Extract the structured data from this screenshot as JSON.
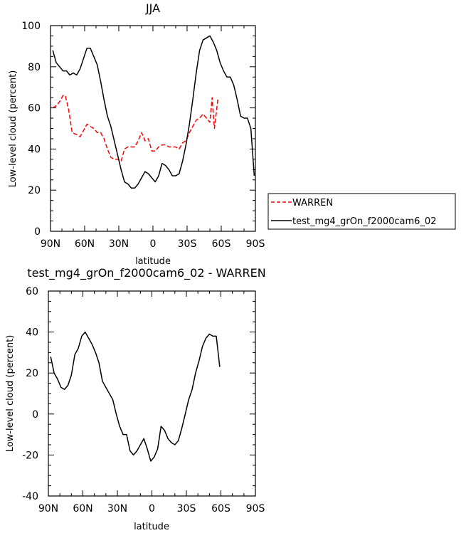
{
  "chart_data": [
    {
      "type": "line",
      "title": "JJA",
      "xlabel": "latitude",
      "ylabel": "Low-level cloud (percent)",
      "xlim": [
        -90,
        90
      ],
      "ylim": [
        0,
        100
      ],
      "x_ticks": [
        -90,
        -60,
        -30,
        0,
        30,
        60,
        90
      ],
      "x_tick_labels": [
        "90N",
        "60N",
        "30N",
        "0",
        "30S",
        "60S",
        "90S"
      ],
      "y_ticks": [
        0,
        20,
        40,
        60,
        80,
        100
      ],
      "y_tick_labels": [
        "0",
        "20",
        "40",
        "60",
        "80",
        "100"
      ],
      "legend": "outside-right",
      "series": [
        {
          "name": "WARREN",
          "color": "#ff0000",
          "dash": "dashed",
          "x": [
            -88,
            -85,
            -82,
            -79,
            -77,
            -74,
            -71,
            -67,
            -64,
            -61,
            -58,
            -55,
            -52,
            -49,
            -46,
            -43,
            -40,
            -37,
            -34,
            -31,
            -28,
            -25,
            -22,
            -19,
            -16,
            -13,
            -10,
            -7,
            -4,
            -1,
            2,
            5,
            8,
            11,
            14,
            17,
            20,
            23,
            26,
            29,
            32,
            35,
            38,
            41,
            44,
            47,
            50,
            52,
            54,
            57
          ],
          "values": [
            60,
            61,
            63,
            66,
            66,
            59,
            48,
            47,
            46,
            49,
            52,
            51,
            50,
            48,
            48,
            45,
            40,
            36,
            35,
            35,
            34,
            40,
            41,
            41,
            41,
            44,
            48,
            44,
            45,
            39,
            39,
            41,
            42,
            42,
            41,
            41,
            41,
            40,
            43,
            44,
            48,
            51,
            54,
            55,
            57,
            55,
            53,
            65,
            50,
            64
          ]
        },
        {
          "name": "test_mg4_grOn_f2000cam6_02",
          "color": "#000000",
          "dash": "solid",
          "x": [
            -88,
            -85,
            -82,
            -79,
            -76,
            -73,
            -70,
            -67,
            -64,
            -61,
            -58,
            -55,
            -52,
            -49,
            -46,
            -43,
            -40,
            -37,
            -34,
            -31,
            -28,
            -25,
            -22,
            -19,
            -16,
            -13,
            -10,
            -7,
            -4,
            -1,
            2,
            5,
            8,
            11,
            14,
            17,
            20,
            23,
            26,
            29,
            32,
            35,
            38,
            41,
            44,
            47,
            50,
            53,
            56,
            59,
            62,
            65,
            68,
            71,
            74,
            77,
            80,
            83,
            86,
            89
          ],
          "values": [
            88,
            82,
            80,
            78,
            78,
            76,
            77,
            76,
            79,
            84,
            89,
            89,
            85,
            81,
            73,
            64,
            56,
            51,
            44,
            37,
            30,
            24,
            23,
            21,
            21,
            23,
            26,
            29,
            28,
            26,
            24,
            27,
            33,
            32,
            30,
            27,
            27,
            28,
            34,
            42,
            52,
            64,
            77,
            88,
            93,
            94,
            95,
            92,
            88,
            82,
            78,
            75,
            75,
            71,
            64,
            56,
            55,
            55,
            50,
            27
          ]
        }
      ]
    },
    {
      "type": "line",
      "title": "test_mg4_grOn_f2000cam6_02 - WARREN",
      "xlabel": "latitude",
      "ylabel": "Low-level cloud (percent)",
      "xlim": [
        -90,
        90
      ],
      "ylim": [
        -40,
        60
      ],
      "x_ticks": [
        -90,
        -60,
        -30,
        0,
        30,
        60,
        90
      ],
      "x_tick_labels": [
        "90N",
        "60N",
        "30N",
        "0",
        "30S",
        "60S",
        "90S"
      ],
      "y_ticks": [
        -40,
        -20,
        0,
        20,
        40,
        60
      ],
      "y_tick_labels": [
        "-40",
        "-20",
        "0",
        "20",
        "40",
        "60"
      ],
      "series": [
        {
          "color": "#000000",
          "dash": "solid",
          "x": [
            -88,
            -85,
            -82,
            -79,
            -76,
            -73,
            -70,
            -67,
            -64,
            -61,
            -58,
            -55,
            -52,
            -49,
            -46,
            -43,
            -40,
            -37,
            -34,
            -31,
            -28,
            -25,
            -22,
            -19,
            -16,
            -13,
            -10,
            -7,
            -4,
            -1,
            2,
            5,
            8,
            11,
            14,
            17,
            20,
            23,
            26,
            29,
            32,
            35,
            38,
            41,
            44,
            47,
            50,
            53,
            56,
            59
          ],
          "values": [
            28,
            20,
            17,
            13,
            12,
            14,
            19,
            29,
            32,
            38,
            40,
            37,
            34,
            30,
            25,
            16,
            13,
            10,
            7,
            0,
            -6,
            -10,
            -10,
            -18,
            -20,
            -18,
            -15,
            -12,
            -17,
            -23,
            -21,
            -17,
            -6,
            -8,
            -12,
            -14,
            -15,
            -13,
            -7,
            0,
            7,
            12,
            20,
            26,
            33,
            37,
            39,
            38,
            38,
            23
          ]
        }
      ]
    }
  ]
}
